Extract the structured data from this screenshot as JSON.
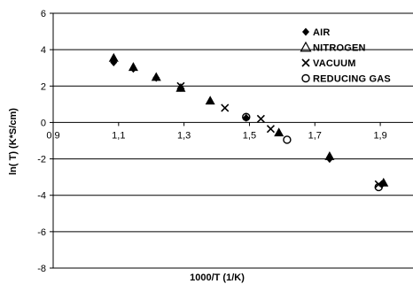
{
  "chart_data": {
    "type": "scatter",
    "title": "",
    "xlabel": "1000/T   (1/K)",
    "ylabel": "ln( T)   (K*S/cm)",
    "xlim": [
      0.9,
      2.0
    ],
    "ylim": [
      -8,
      6
    ],
    "x_ticks": [
      0.9,
      1.1,
      1.3,
      1.5,
      1.7,
      1.9
    ],
    "x_tick_labels": [
      "0,9",
      "1,1",
      "1,3",
      "1,5",
      "1,7",
      "1,9"
    ],
    "y_ticks": [
      -8,
      -6,
      -4,
      -2,
      0,
      2,
      4,
      6
    ],
    "y_tick_labels": [
      "-8",
      "-6",
      "-4",
      "-2",
      "0",
      "2",
      "4",
      "6"
    ],
    "grid": "horizontal",
    "legend_position": "top-right",
    "series": [
      {
        "name": "AIR",
        "marker": "diamond",
        "points": [
          [
            1.085,
            3.3
          ],
          [
            1.145,
            2.95
          ],
          [
            1.215,
            2.45
          ],
          [
            1.29,
            1.9
          ],
          [
            1.49,
            0.25
          ],
          [
            1.745,
            -2.0
          ],
          [
            1.905,
            -3.4
          ]
        ]
      },
      {
        "name": "NITROGEN",
        "marker": "triangle",
        "points": [
          [
            1.085,
            3.55
          ],
          [
            1.145,
            3.05
          ],
          [
            1.215,
            2.5
          ],
          [
            1.29,
            1.9
          ],
          [
            1.38,
            1.2
          ],
          [
            1.59,
            -0.55
          ],
          [
            1.745,
            -1.85
          ],
          [
            1.91,
            -3.3
          ]
        ]
      },
      {
        "name": "VACUUM",
        "marker": "x",
        "points": [
          [
            1.29,
            2.0
          ],
          [
            1.425,
            0.8
          ],
          [
            1.535,
            0.2
          ],
          [
            1.565,
            -0.35
          ],
          [
            1.895,
            -3.4
          ]
        ]
      },
      {
        "name": "REDUCING GAS",
        "marker": "circle",
        "points": [
          [
            1.49,
            0.3
          ],
          [
            1.615,
            -0.95
          ],
          [
            1.895,
            -3.55
          ]
        ]
      }
    ]
  }
}
